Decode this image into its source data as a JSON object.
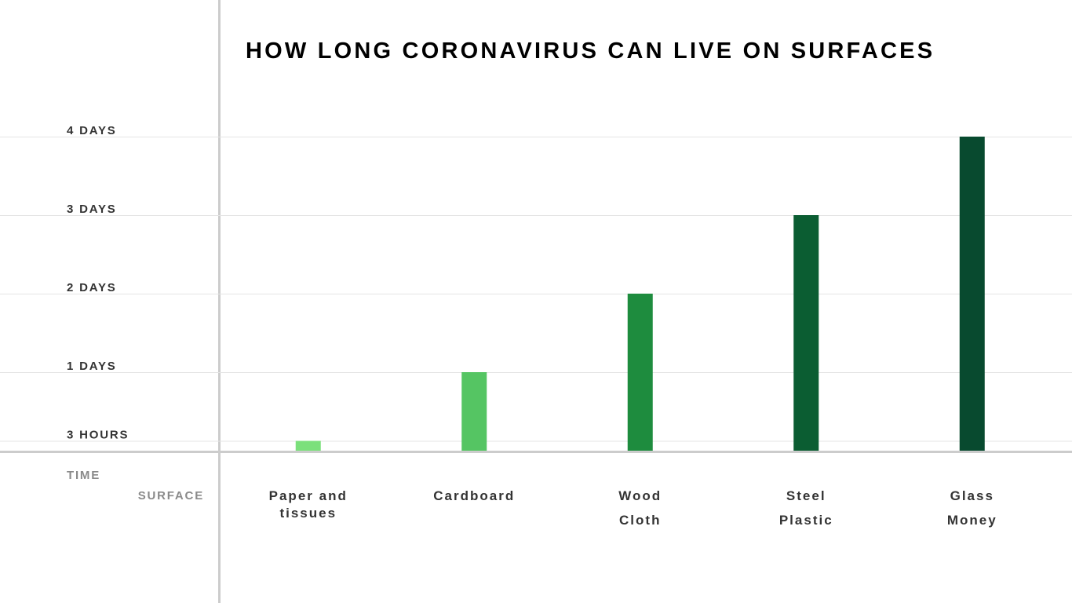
{
  "chart_data": {
    "type": "bar",
    "title": "HOW LONG CORONAVIRUS CAN LIVE ON SURFACES",
    "y_label": "TIME",
    "x_label": "SURFACE",
    "categories": [
      [
        "Paper and",
        "tissues"
      ],
      [
        "Cardboard"
      ],
      [
        "Wood",
        "Cloth"
      ],
      [
        "Steel",
        "Plastic"
      ],
      [
        "Glass",
        "Money"
      ]
    ],
    "values": [
      0.125,
      1,
      2,
      3,
      4
    ],
    "colors": [
      "#7be07b",
      "#55c563",
      "#1e8c3e",
      "#0b5d32",
      "#084a2f"
    ],
    "ylim": [
      0,
      4
    ],
    "yticks": [
      {
        "value": 0.125,
        "label": "3 HOURS"
      },
      {
        "value": 1,
        "label": "1 DAYS"
      },
      {
        "value": 2,
        "label": "2 DAYS"
      },
      {
        "value": 3,
        "label": "3 DAYS"
      },
      {
        "value": 4,
        "label": "4 DAYS"
      }
    ],
    "grid": true
  }
}
